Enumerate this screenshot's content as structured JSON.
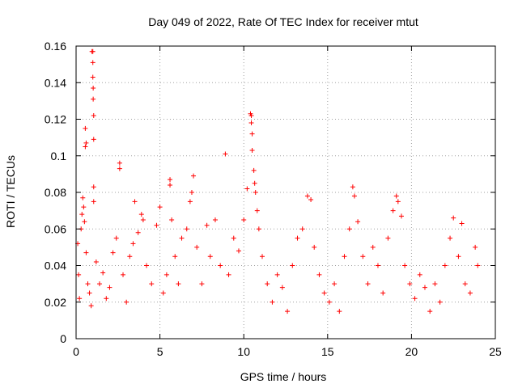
{
  "chart_data": {
    "type": "scatter",
    "title": "Day 049 of 2022, Rate Of TEC Index for receiver mtut",
    "xlabel": "GPS time / hours",
    "ylabel": "ROTI / TECUs",
    "xlim": [
      0,
      25
    ],
    "ylim": [
      0,
      0.16
    ],
    "x_ticks": [
      "0",
      "5",
      "10",
      "15",
      "20",
      "25"
    ],
    "y_ticks": [
      "0",
      "0.02",
      "0.04",
      "0.06",
      "0.08",
      "0.1",
      "0.12",
      "0.14",
      "0.16"
    ],
    "x_tick_values": [
      0,
      5,
      10,
      15,
      20,
      25
    ],
    "y_tick_values": [
      0,
      0.02,
      0.04,
      0.06,
      0.08,
      0.1,
      0.12,
      0.14,
      0.16
    ],
    "grid": true,
    "marker": "+",
    "marker_color": "#ff0000",
    "series": [
      {
        "name": "ROTI",
        "points": [
          [
            0.1,
            0.052
          ],
          [
            0.15,
            0.035
          ],
          [
            0.2,
            0.022
          ],
          [
            0.3,
            0.06
          ],
          [
            0.35,
            0.068
          ],
          [
            0.4,
            0.077
          ],
          [
            0.45,
            0.072
          ],
          [
            0.5,
            0.064
          ],
          [
            0.55,
            0.115
          ],
          [
            0.55,
            0.105
          ],
          [
            0.6,
            0.107
          ],
          [
            0.6,
            0.047
          ],
          [
            0.7,
            0.03
          ],
          [
            0.8,
            0.025
          ],
          [
            0.9,
            0.018
          ],
          [
            0.95,
            0.157
          ],
          [
            1.0,
            0.157
          ],
          [
            1.0,
            0.151
          ],
          [
            1.0,
            0.143
          ],
          [
            1.02,
            0.137
          ],
          [
            1.02,
            0.131
          ],
          [
            1.05,
            0.122
          ],
          [
            1.05,
            0.109
          ],
          [
            1.05,
            0.083
          ],
          [
            1.05,
            0.075
          ],
          [
            1.2,
            0.042
          ],
          [
            1.4,
            0.03
          ],
          [
            1.6,
            0.036
          ],
          [
            1.8,
            0.022
          ],
          [
            2.0,
            0.028
          ],
          [
            2.2,
            0.047
          ],
          [
            2.4,
            0.055
          ],
          [
            2.6,
            0.096
          ],
          [
            2.6,
            0.093
          ],
          [
            2.8,
            0.035
          ],
          [
            3.0,
            0.02
          ],
          [
            3.2,
            0.045
          ],
          [
            3.4,
            0.052
          ],
          [
            3.5,
            0.075
          ],
          [
            3.7,
            0.058
          ],
          [
            3.9,
            0.068
          ],
          [
            4.0,
            0.065
          ],
          [
            4.2,
            0.04
          ],
          [
            4.5,
            0.03
          ],
          [
            4.8,
            0.062
          ],
          [
            5.0,
            0.072
          ],
          [
            5.2,
            0.025
          ],
          [
            5.4,
            0.035
          ],
          [
            5.6,
            0.087
          ],
          [
            5.6,
            0.084
          ],
          [
            5.7,
            0.065
          ],
          [
            5.9,
            0.045
          ],
          [
            6.1,
            0.03
          ],
          [
            6.3,
            0.055
          ],
          [
            6.6,
            0.06
          ],
          [
            6.8,
            0.075
          ],
          [
            6.9,
            0.08
          ],
          [
            7.0,
            0.089
          ],
          [
            7.2,
            0.05
          ],
          [
            7.5,
            0.03
          ],
          [
            7.8,
            0.062
          ],
          [
            8.0,
            0.045
          ],
          [
            8.3,
            0.065
          ],
          [
            8.6,
            0.04
          ],
          [
            8.9,
            0.101
          ],
          [
            9.1,
            0.035
          ],
          [
            9.4,
            0.055
          ],
          [
            9.7,
            0.048
          ],
          [
            10.0,
            0.065
          ],
          [
            10.2,
            0.082
          ],
          [
            10.4,
            0.123
          ],
          [
            10.45,
            0.122
          ],
          [
            10.45,
            0.118
          ],
          [
            10.5,
            0.112
          ],
          [
            10.5,
            0.103
          ],
          [
            10.6,
            0.092
          ],
          [
            10.65,
            0.085
          ],
          [
            10.7,
            0.08
          ],
          [
            10.8,
            0.07
          ],
          [
            10.9,
            0.06
          ],
          [
            11.1,
            0.045
          ],
          [
            11.4,
            0.03
          ],
          [
            11.7,
            0.02
          ],
          [
            12.0,
            0.035
          ],
          [
            12.3,
            0.028
          ],
          [
            12.6,
            0.015
          ],
          [
            12.9,
            0.04
          ],
          [
            13.2,
            0.055
          ],
          [
            13.5,
            0.06
          ],
          [
            13.8,
            0.078
          ],
          [
            14.0,
            0.076
          ],
          [
            14.2,
            0.05
          ],
          [
            14.5,
            0.035
          ],
          [
            14.8,
            0.025
          ],
          [
            15.1,
            0.02
          ],
          [
            15.4,
            0.03
          ],
          [
            15.7,
            0.015
          ],
          [
            16.0,
            0.045
          ],
          [
            16.3,
            0.06
          ],
          [
            16.5,
            0.083
          ],
          [
            16.6,
            0.078
          ],
          [
            16.8,
            0.064
          ],
          [
            17.1,
            0.045
          ],
          [
            17.4,
            0.03
          ],
          [
            17.7,
            0.05
          ],
          [
            18.0,
            0.04
          ],
          [
            18.3,
            0.025
          ],
          [
            18.6,
            0.055
          ],
          [
            18.9,
            0.07
          ],
          [
            19.1,
            0.078
          ],
          [
            19.2,
            0.075
          ],
          [
            19.4,
            0.067
          ],
          [
            19.6,
            0.04
          ],
          [
            19.9,
            0.03
          ],
          [
            20.2,
            0.022
          ],
          [
            20.5,
            0.035
          ],
          [
            20.8,
            0.028
          ],
          [
            21.1,
            0.015
          ],
          [
            21.4,
            0.03
          ],
          [
            21.7,
            0.02
          ],
          [
            22.0,
            0.04
          ],
          [
            22.3,
            0.055
          ],
          [
            22.5,
            0.066
          ],
          [
            22.8,
            0.045
          ],
          [
            23.0,
            0.063
          ],
          [
            23.2,
            0.03
          ],
          [
            23.5,
            0.025
          ],
          [
            23.8,
            0.05
          ],
          [
            23.95,
            0.04
          ]
        ]
      }
    ]
  }
}
